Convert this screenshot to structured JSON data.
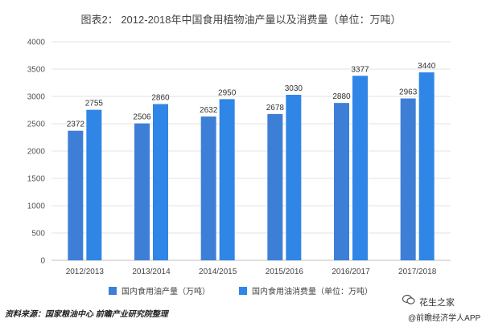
{
  "title": "图表2：  2012-2018年中国食用植物油产量以及消费量（单位：万吨）",
  "source": "资料来源：国家粮油中心  前瞻产业研究院整理",
  "brand": {
    "name": "花生之家",
    "app": "@前瞻经济学人APP"
  },
  "colors": {
    "production": "#3d7fd6",
    "consumption": "#2f86e6"
  },
  "chart_data": {
    "type": "bar",
    "categories": [
      "2012/2013",
      "2013/2014",
      "2014/2015",
      "2015/2016",
      "2016/2017",
      "2017/2018"
    ],
    "series": [
      {
        "name": "国内食用油产量（万吨）",
        "values": [
          2372,
          2506,
          2632,
          2678,
          2880,
          2963
        ]
      },
      {
        "name": "国内食用油消费量（单位：万吨）",
        "values": [
          2755,
          2860,
          2950,
          3030,
          3377,
          3440
        ]
      }
    ],
    "ylim": [
      0,
      4000
    ],
    "yticks": [
      0,
      500,
      1000,
      1500,
      2000,
      2500,
      3000,
      3500,
      4000
    ],
    "grid": true,
    "legend_position": "bottom"
  }
}
